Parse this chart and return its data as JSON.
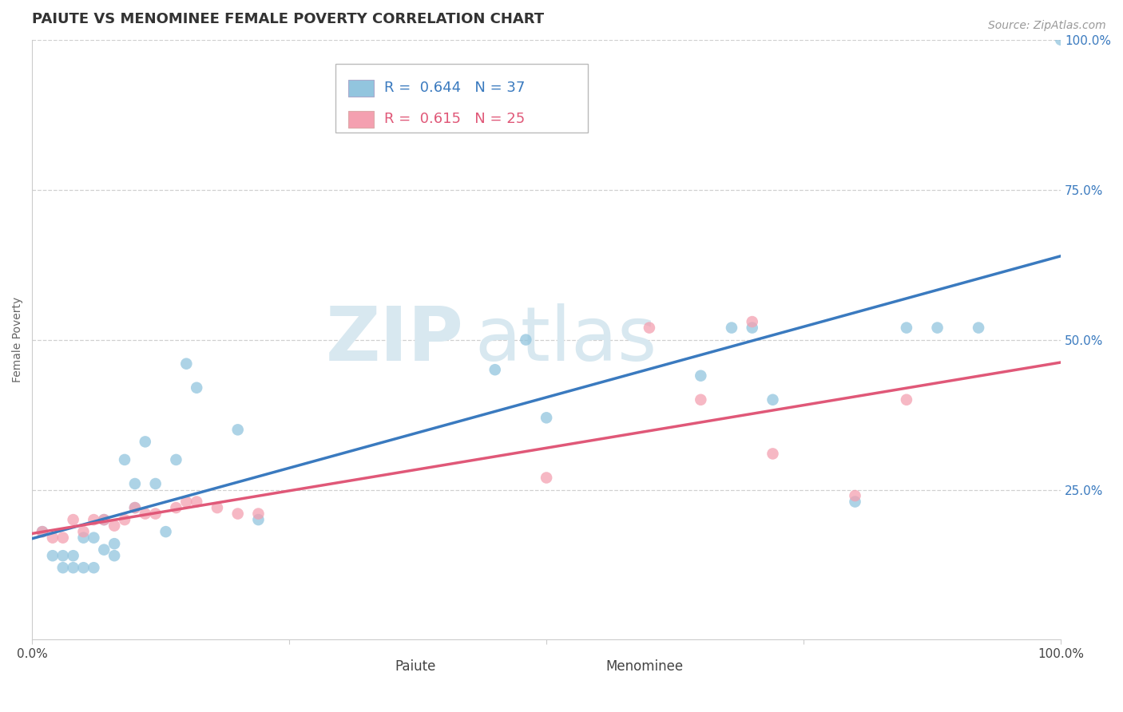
{
  "title": "PAIUTE VS MENOMINEE FEMALE POVERTY CORRELATION CHART",
  "source": "Source: ZipAtlas.com",
  "ylabel": "Female Poverty",
  "xlim": [
    0,
    1
  ],
  "ylim": [
    0,
    1
  ],
  "ytick_labels": [
    "25.0%",
    "50.0%",
    "75.0%",
    "100.0%"
  ],
  "ytick_positions": [
    0.25,
    0.5,
    0.75,
    1.0
  ],
  "paiute_color": "#92c5de",
  "menominee_color": "#f4a0b0",
  "paiute_line_color": "#3a7abf",
  "menominee_line_color": "#e05878",
  "R_paiute": 0.644,
  "N_paiute": 37,
  "R_menominee": 0.615,
  "N_menominee": 25,
  "watermark_zip": "ZIP",
  "watermark_atlas": "atlas",
  "background_color": "#ffffff",
  "grid_color": "#d0d0d0",
  "paiute_x": [
    0.01,
    0.02,
    0.03,
    0.03,
    0.04,
    0.04,
    0.05,
    0.05,
    0.06,
    0.06,
    0.07,
    0.07,
    0.08,
    0.08,
    0.09,
    0.1,
    0.1,
    0.11,
    0.12,
    0.13,
    0.14,
    0.15,
    0.16,
    0.2,
    0.22,
    0.45,
    0.48,
    0.5,
    0.65,
    0.68,
    0.7,
    0.72,
    0.8,
    0.85,
    0.88,
    0.92,
    1.0
  ],
  "paiute_y": [
    0.18,
    0.14,
    0.14,
    0.12,
    0.14,
    0.12,
    0.17,
    0.12,
    0.17,
    0.12,
    0.2,
    0.15,
    0.16,
    0.14,
    0.3,
    0.26,
    0.22,
    0.33,
    0.26,
    0.18,
    0.3,
    0.46,
    0.42,
    0.35,
    0.2,
    0.45,
    0.5,
    0.37,
    0.44,
    0.52,
    0.52,
    0.4,
    0.23,
    0.52,
    0.52,
    0.52,
    1.0
  ],
  "menominee_x": [
    0.01,
    0.02,
    0.03,
    0.04,
    0.05,
    0.06,
    0.07,
    0.08,
    0.09,
    0.1,
    0.11,
    0.12,
    0.14,
    0.15,
    0.16,
    0.18,
    0.2,
    0.22,
    0.5,
    0.6,
    0.65,
    0.7,
    0.72,
    0.8,
    0.85
  ],
  "menominee_y": [
    0.18,
    0.17,
    0.17,
    0.2,
    0.18,
    0.2,
    0.2,
    0.19,
    0.2,
    0.22,
    0.21,
    0.21,
    0.22,
    0.23,
    0.23,
    0.22,
    0.21,
    0.21,
    0.27,
    0.52,
    0.4,
    0.53,
    0.31,
    0.24,
    0.4
  ],
  "title_fontsize": 13,
  "axis_label_fontsize": 10,
  "tick_fontsize": 11,
  "legend_fontsize": 13,
  "source_fontsize": 10,
  "marker_size": 110
}
